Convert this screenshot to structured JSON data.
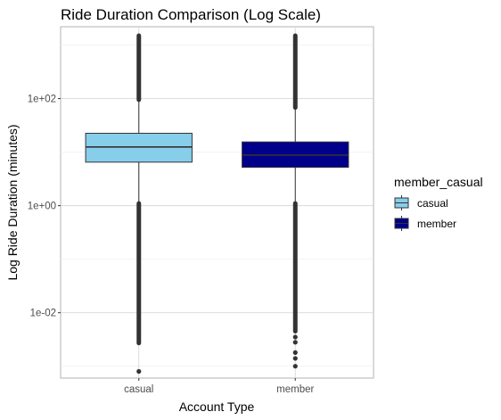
{
  "chart_data": {
    "type": "boxplot",
    "title": "Ride Duration Comparison (Log Scale)",
    "xlabel": "Account Type",
    "ylabel": "Log Ride Duration (minutes)",
    "y_scale": "log10",
    "ylim": [
      0.0006,
      2200
    ],
    "y_ticks": [
      {
        "value": 0.01,
        "label": "1e-02"
      },
      {
        "value": 1,
        "label": "1e+00"
      },
      {
        "value": 100,
        "label": "1e+02"
      }
    ],
    "grid": true,
    "categories": [
      "casual",
      "member"
    ],
    "series": [
      {
        "name": "casual",
        "color": "#87CEEB",
        "q1": 6.5,
        "median": 12.5,
        "q3": 22.5,
        "whisker_low": 1.1,
        "whisker_high": 95,
        "outliers_high_range": [
          95,
          1500
        ],
        "outliers_low_range": [
          0.0027,
          1.1
        ],
        "outliers_extra": [
          0.0008
        ]
      },
      {
        "name": "member",
        "color": "#00008B",
        "q1": 5.2,
        "median": 8.8,
        "q3": 15.5,
        "whisker_low": 1.1,
        "whisker_high": 68,
        "outliers_high_range": [
          68,
          1500
        ],
        "outliers_low_range": [
          0.0045,
          1.1
        ],
        "outliers_extra": [
          0.0035,
          0.0028,
          0.0018,
          0.0014,
          0.001
        ]
      }
    ],
    "legend": {
      "title": "member_casual",
      "position": "right",
      "entries": [
        "casual",
        "member"
      ]
    }
  }
}
